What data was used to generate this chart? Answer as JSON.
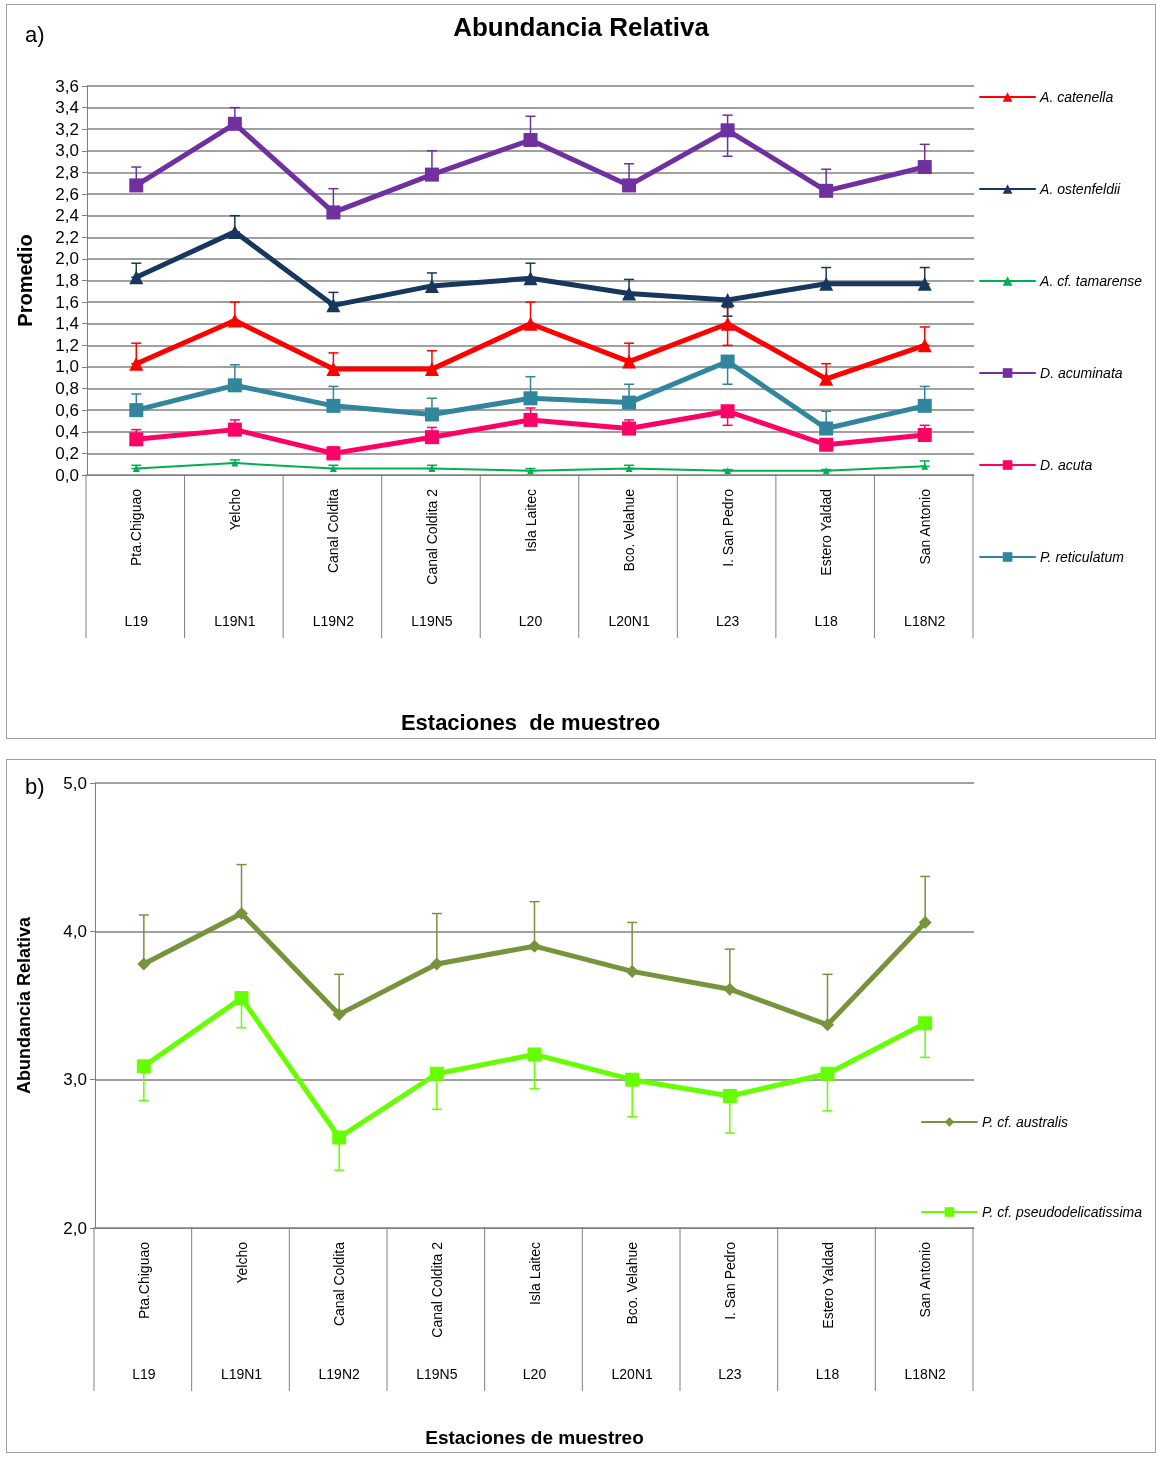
{
  "chart_data": [
    {
      "type": "line",
      "title": "Abundancia Relativa",
      "xlabel": "Estaciones  de muestreo",
      "ylabel": "Promedio",
      "categories": [
        "Pta.Chiguao",
        "Yelcho",
        "Canal Coldita",
        "Canal Coldita 2",
        "Isla Laitec",
        "Bco. Velahue",
        "I. San Pedro",
        "Estero Yaldad",
        "San Antonio"
      ],
      "annotations": [
        "a)",
        "L19",
        "L19N1",
        "L19N2",
        "L19N5",
        "L20",
        "L20N1",
        "L23",
        "L18",
        "L18N2"
      ],
      "series": [
        {
          "name": "A. catenella",
          "color": "#ff0000",
          "marker": "triangle",
          "values": [
            1.03,
            1.43,
            0.98,
            0.98,
            1.4,
            1.05,
            1.4,
            0.89,
            1.2
          ],
          "errors": [
            [
              1.03,
              1.22
            ],
            [
              1.43,
              1.6
            ],
            [
              0.98,
              1.13
            ],
            [
              0.98,
              1.15
            ],
            [
              1.4,
              1.6
            ],
            [
              1.05,
              1.22
            ],
            [
              1.2,
              1.55
            ],
            [
              0.89,
              1.03
            ],
            [
              1.2,
              1.37
            ]
          ]
        },
        {
          "name": "A. ostenfeldii",
          "color": "#17375e",
          "marker": "triangle",
          "values": [
            1.83,
            2.25,
            1.57,
            1.75,
            1.82,
            1.68,
            1.62,
            1.77,
            1.77
          ],
          "errors": [
            [
              1.83,
              1.96
            ],
            [
              2.25,
              2.4
            ],
            [
              1.57,
              1.69
            ],
            [
              1.75,
              1.87
            ],
            [
              1.82,
              1.96
            ],
            [
              1.68,
              1.81
            ],
            [
              1.47,
              1.62
            ],
            [
              1.77,
              1.92
            ],
            [
              1.77,
              1.92
            ]
          ]
        },
        {
          "name": "A. cf. tamarense",
          "color": "#00b050",
          "marker": "triangle",
          "values": [
            0.06,
            0.11,
            0.06,
            0.06,
            0.04,
            0.06,
            0.04,
            0.04,
            0.08
          ],
          "errors": [
            [
              0.06,
              0.09
            ],
            [
              0.11,
              0.14
            ],
            [
              0.06,
              0.09
            ],
            [
              0.06,
              0.09
            ],
            [
              0.04,
              0.06
            ],
            [
              0.06,
              0.09
            ],
            [
              0.04,
              0.05
            ],
            [
              0.04,
              0.05
            ],
            [
              0.08,
              0.13
            ]
          ]
        },
        {
          "name": "D. acuminata",
          "color": "#7030a0",
          "marker": "square",
          "values": [
            2.68,
            3.25,
            2.43,
            2.78,
            3.1,
            2.68,
            3.19,
            2.63,
            2.85
          ],
          "errors": [
            [
              2.68,
              2.85
            ],
            [
              3.25,
              3.4
            ],
            [
              2.43,
              2.65
            ],
            [
              2.78,
              3.0
            ],
            [
              3.1,
              3.32
            ],
            [
              2.68,
              2.88
            ],
            [
              2.95,
              3.33
            ],
            [
              2.63,
              2.83
            ],
            [
              2.85,
              3.06
            ]
          ]
        },
        {
          "name": "D. acuta",
          "color": "#ff0066",
          "marker": "square",
          "values": [
            0.33,
            0.42,
            0.2,
            0.35,
            0.51,
            0.43,
            0.59,
            0.28,
            0.37
          ],
          "errors": [
            [
              0.33,
              0.42
            ],
            [
              0.42,
              0.51
            ],
            [
              0.2,
              0.26
            ],
            [
              0.35,
              0.44
            ],
            [
              0.51,
              0.62
            ],
            [
              0.43,
              0.51
            ],
            [
              0.46,
              0.59
            ],
            [
              0.28,
              0.32
            ],
            [
              0.37,
              0.46
            ]
          ]
        },
        {
          "name": "P. reticulatum",
          "color": "#31859c",
          "marker": "square",
          "values": [
            0.6,
            0.83,
            0.64,
            0.56,
            0.71,
            0.67,
            1.05,
            0.43,
            0.64
          ],
          "errors": [
            [
              0.6,
              0.75
            ],
            [
              0.83,
              1.02
            ],
            [
              0.64,
              0.82
            ],
            [
              0.56,
              0.71
            ],
            [
              0.71,
              0.91
            ],
            [
              0.67,
              0.84
            ],
            [
              0.84,
              1.05
            ],
            [
              0.43,
              0.59
            ],
            [
              0.64,
              0.82
            ]
          ]
        }
      ],
      "ylim": [
        0,
        3.6
      ],
      "yticks": [
        {
          "value": 0,
          "label": "0,0"
        },
        {
          "value": 0.2,
          "label": "0,2"
        },
        {
          "value": 0.4,
          "label": "0,4"
        },
        {
          "value": 0.6,
          "label": "0,6"
        },
        {
          "value": 0.8,
          "label": "0,8"
        },
        {
          "value": 1.0,
          "label": "1,0"
        },
        {
          "value": 1.2,
          "label": "1,2"
        },
        {
          "value": 1.4,
          "label": "1,4"
        },
        {
          "value": 1.6,
          "label": "1,6"
        },
        {
          "value": 1.8,
          "label": "1,8"
        },
        {
          "value": 2.0,
          "label": "2,0"
        },
        {
          "value": 2.2,
          "label": "2,2"
        },
        {
          "value": 2.4,
          "label": "2,4"
        },
        {
          "value": 2.6,
          "label": "2,6"
        },
        {
          "value": 2.8,
          "label": "2,8"
        },
        {
          "value": 3.0,
          "label": "3,0"
        },
        {
          "value": 3.2,
          "label": "3,2"
        },
        {
          "value": 3.4,
          "label": "3,4"
        },
        {
          "value": 3.6,
          "label": "3,6"
        }
      ],
      "grid": "y",
      "legend": "right"
    },
    {
      "type": "line",
      "xlabel": "Estaciones de muestreo",
      "ylabel": "Abundancia Relativa",
      "categories": [
        "Pta.Chiguao",
        "Yelcho",
        "Canal Coldita",
        "Canal Coldita 2",
        "Isla Laitec",
        "Bco. Velahue",
        "I. San Pedro",
        "Estero Yaldad",
        "San Antonio"
      ],
      "annotations": [
        "b)",
        "L19",
        "L19N1",
        "L19N2",
        "L19N5",
        "L20",
        "L20N1",
        "L23",
        "L18",
        "L18N2"
      ],
      "series": [
        {
          "name": "P. cf. australis",
          "color": "#77933c",
          "marker": "diamond",
          "values": [
            3.78,
            4.12,
            3.44,
            3.78,
            3.9,
            3.73,
            3.61,
            3.37,
            4.06
          ],
          "errors": [
            [
              3.78,
              4.11
            ],
            [
              4.12,
              4.45
            ],
            [
              3.44,
              3.71
            ],
            [
              3.78,
              4.12
            ],
            [
              3.9,
              4.2
            ],
            [
              3.73,
              4.06
            ],
            [
              3.61,
              3.88
            ],
            [
              3.37,
              3.71
            ],
            [
              4.06,
              4.37
            ]
          ]
        },
        {
          "name": "P. cf. pseudodelicatissima",
          "color": "#66ff00",
          "marker": "square",
          "values": [
            3.09,
            3.55,
            2.61,
            3.04,
            3.17,
            3.0,
            2.89,
            3.04,
            3.38
          ],
          "errors": [
            [
              2.86,
              3.09
            ],
            [
              3.35,
              3.55
            ],
            [
              2.39,
              2.61
            ],
            [
              2.8,
              3.04
            ],
            [
              2.94,
              3.17
            ],
            [
              2.75,
              3.0
            ],
            [
              2.64,
              2.89
            ],
            [
              2.79,
              3.04
            ],
            [
              3.15,
              3.38
            ]
          ]
        }
      ],
      "ylim": [
        2,
        5
      ],
      "yticks": [
        {
          "value": 2,
          "label": "2,0"
        },
        {
          "value": 3,
          "label": "3,0"
        },
        {
          "value": 4,
          "label": "4,0"
        },
        {
          "value": 5,
          "label": "5,0"
        }
      ],
      "grid": "y",
      "legend": "bottom right"
    }
  ]
}
